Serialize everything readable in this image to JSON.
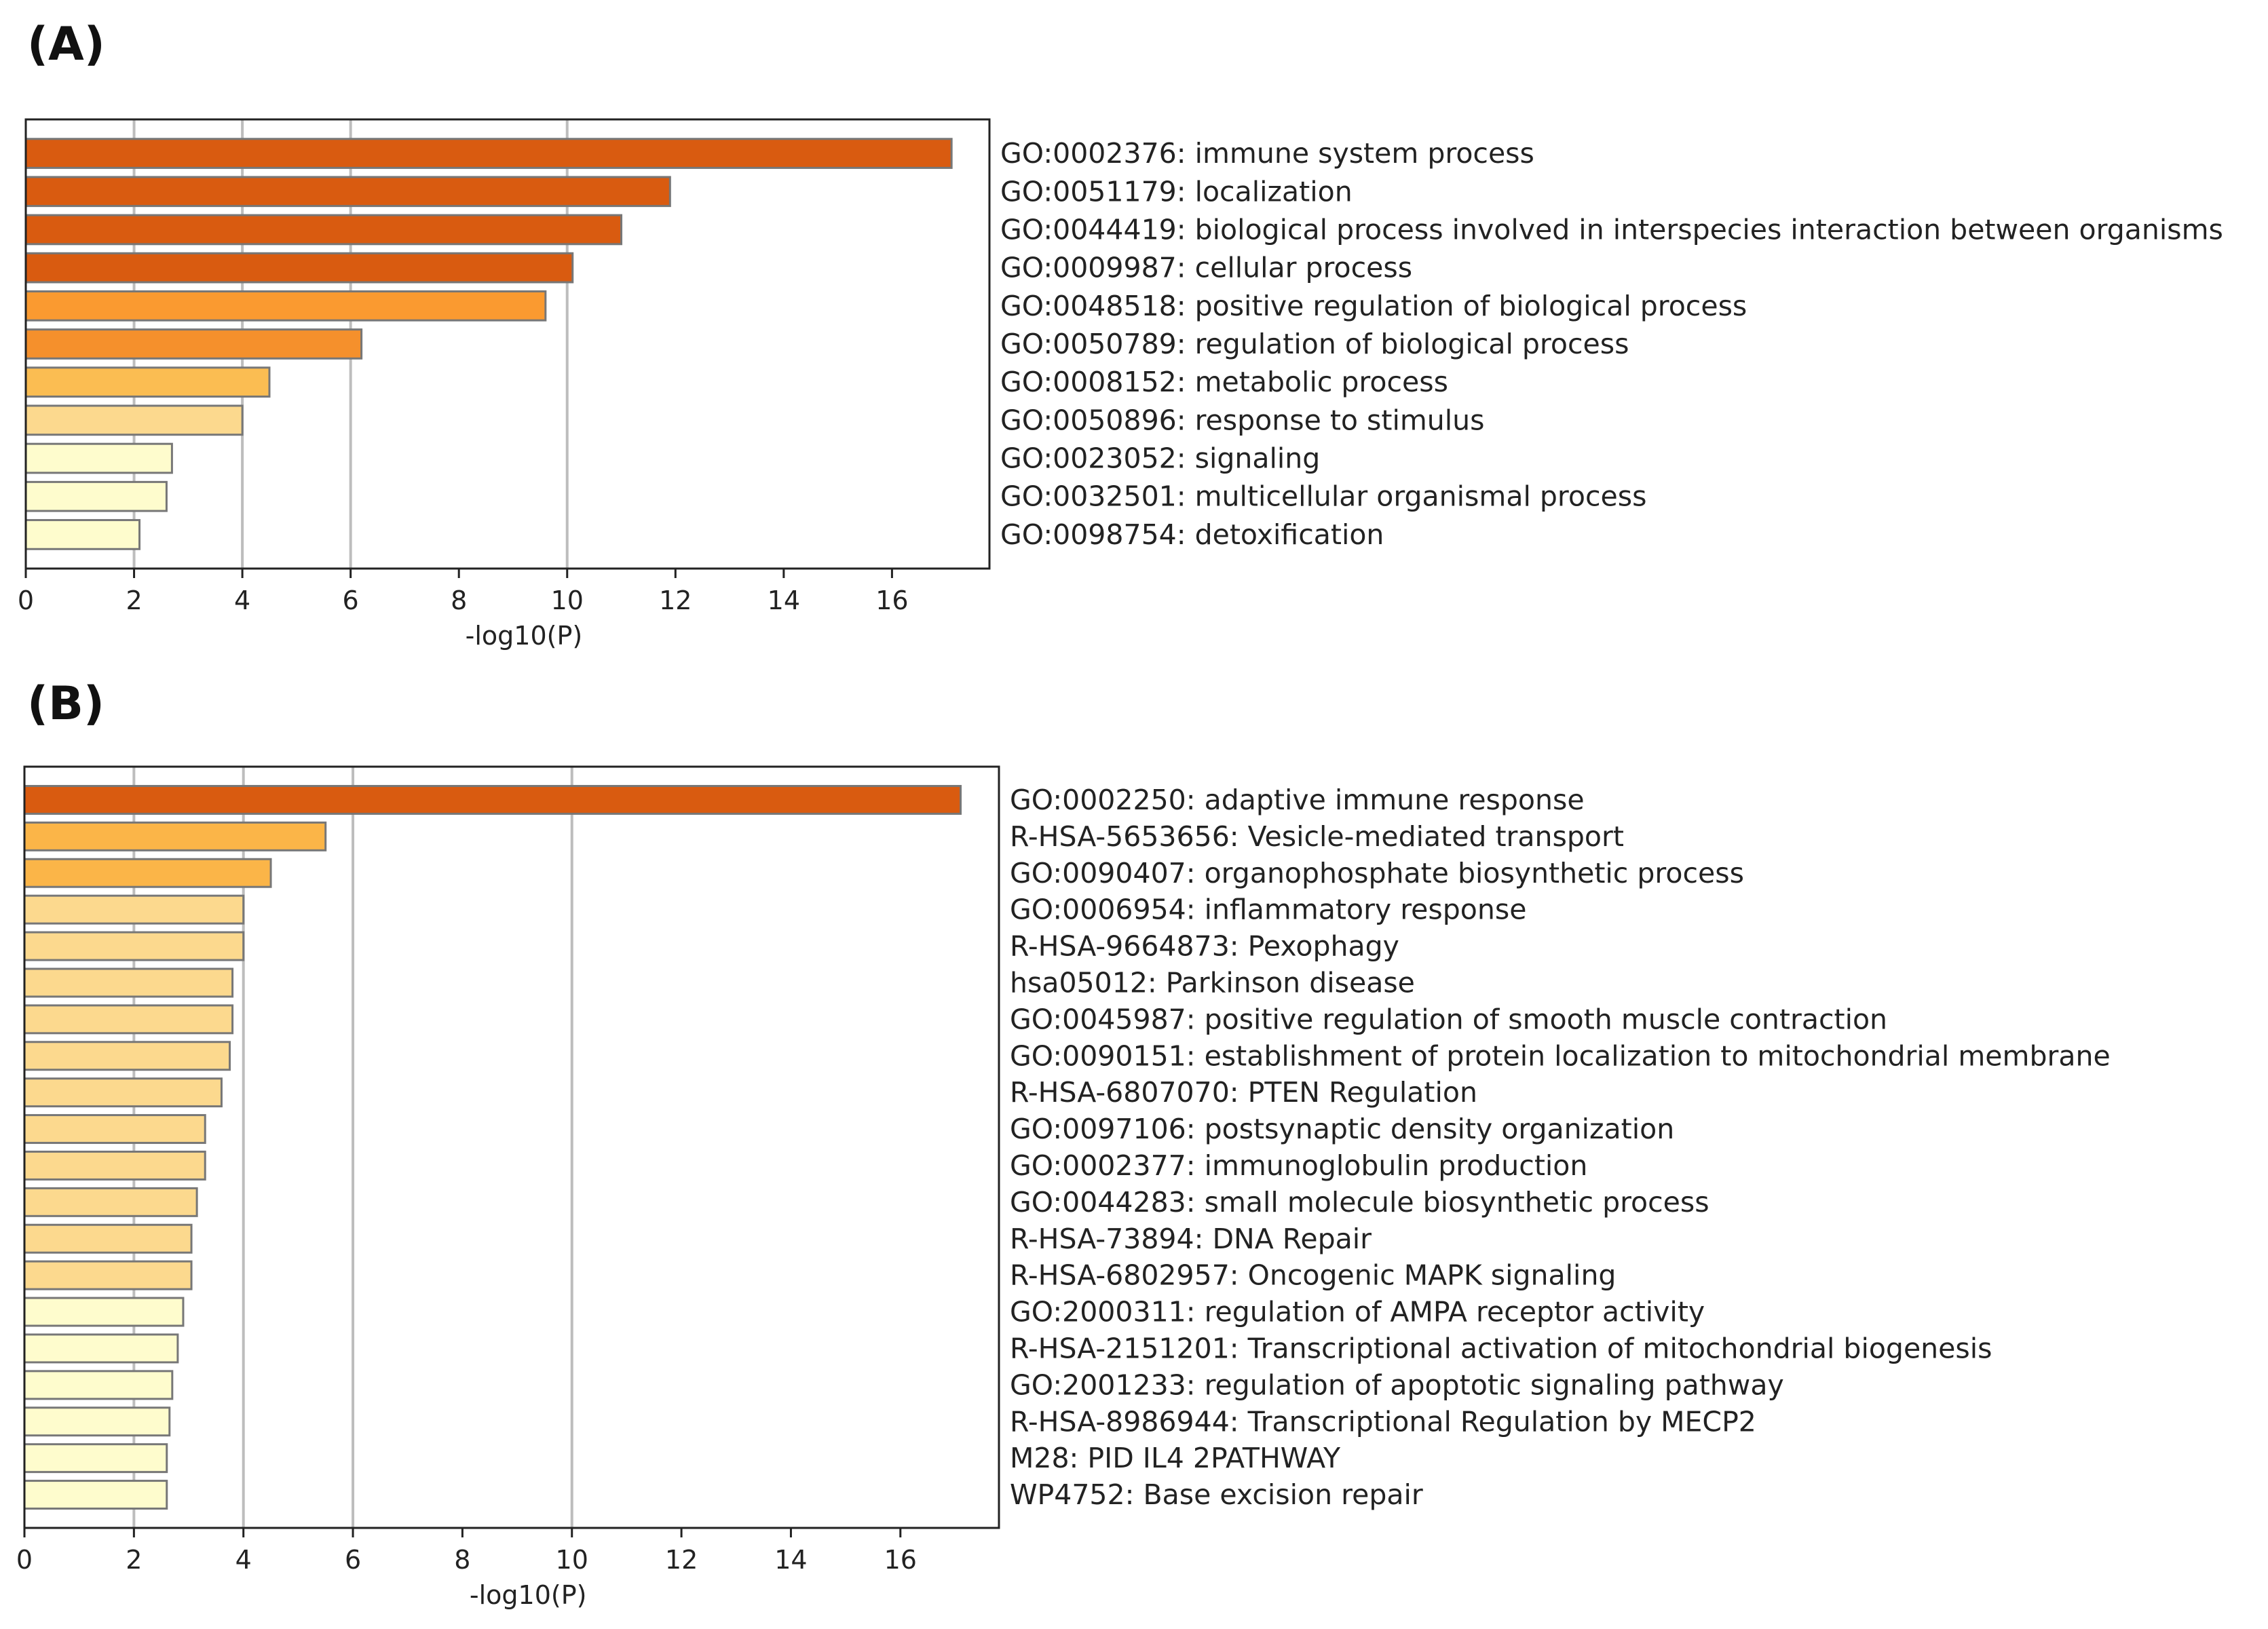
{
  "chart_data": [
    {
      "panel": "(A)",
      "type": "bar",
      "orientation": "horizontal",
      "xlabel": "-log10(P)",
      "xlim": [
        0,
        17.8
      ],
      "xticks": [
        0,
        2,
        4,
        6,
        8,
        10,
        12,
        14,
        16
      ],
      "grid": "vertical gridlines at 2, 4, 6, 10",
      "categories": [
        "GO:0002376: immune system process",
        "GO:0051179: localization",
        "GO:0044419: biological process involved in interspecies interaction between organisms",
        "GO:0009987: cellular process",
        "GO:0048518: positive regulation of biological process",
        "GO:0050789: regulation of biological process",
        "GO:0008152: metabolic process",
        "GO:0050896: response to stimulus",
        "GO:0023052: signaling",
        "GO:0032501: multicellular organismal process",
        "GO:0098754: detoxification"
      ],
      "values": [
        17.1,
        11.9,
        11.0,
        10.1,
        9.6,
        6.2,
        4.5,
        4.0,
        2.7,
        2.6,
        2.1
      ],
      "colors": [
        "#d95b10",
        "#d95b10",
        "#d95b10",
        "#d95b10",
        "#fa9a30",
        "#f5902c",
        "#fbbd52",
        "#fcd98e",
        "#fefccd",
        "#fefccd",
        "#fefccd"
      ]
    },
    {
      "panel": "(B)",
      "type": "bar",
      "orientation": "horizontal",
      "xlabel": "-log10(P)",
      "xlim": [
        0,
        17.8
      ],
      "xticks": [
        0,
        2,
        4,
        6,
        8,
        10,
        12,
        14,
        16
      ],
      "grid": "vertical gridlines at 2, 4, 6, 10",
      "categories": [
        "GO:0002250: adaptive immune response",
        "R-HSA-5653656: Vesicle-mediated transport",
        "GO:0090407: organophosphate biosynthetic process",
        "GO:0006954: inflammatory response",
        "R-HSA-9664873: Pexophagy",
        "hsa05012: Parkinson disease",
        "GO:0045987: positive regulation of smooth muscle contraction",
        "GO:0090151: establishment of protein localization to mitochondrial membrane",
        "R-HSA-6807070: PTEN Regulation",
        "GO:0097106: postsynaptic density organization",
        "GO:0002377: immunoglobulin production",
        "GO:0044283: small molecule biosynthetic process",
        "R-HSA-73894: DNA Repair",
        "R-HSA-6802957: Oncogenic MAPK signaling",
        "GO:2000311: regulation of AMPA receptor activity",
        "R-HSA-2151201: Transcriptional activation of mitochondrial biogenesis",
        "GO:2001233: regulation of apoptotic signaling pathway",
        "R-HSA-8986944: Transcriptional Regulation by MECP2",
        "M28: PID IL4 2PATHWAY",
        "WP4752: Base excision repair"
      ],
      "values": [
        17.1,
        5.5,
        4.5,
        4.0,
        4.0,
        3.8,
        3.8,
        3.75,
        3.6,
        3.3,
        3.3,
        3.15,
        3.05,
        3.05,
        2.9,
        2.8,
        2.7,
        2.65,
        2.6,
        2.6
      ],
      "colors": [
        "#d95b10",
        "#fbb548",
        "#fbb548",
        "#fcd98e",
        "#fcd98e",
        "#fcd98e",
        "#fcd98e",
        "#fcd98e",
        "#fcd98e",
        "#fcd98e",
        "#fcd98e",
        "#fcd98e",
        "#fcd98e",
        "#fcd98e",
        "#fefccd",
        "#fefccd",
        "#fefccd",
        "#fefccd",
        "#fefccd",
        "#fefccd"
      ]
    }
  ]
}
